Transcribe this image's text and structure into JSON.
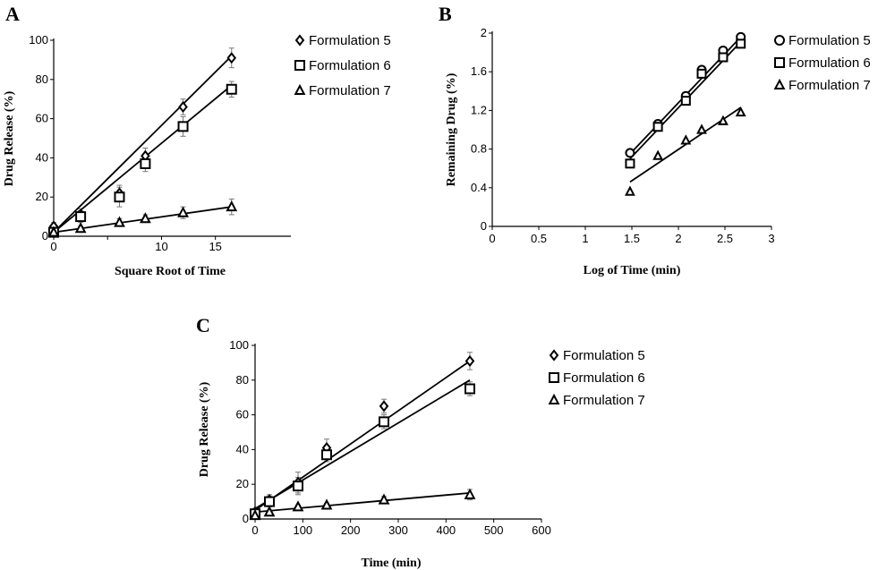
{
  "chart_data": [
    {
      "id": "A",
      "type": "scatter",
      "panel_label": "A",
      "xlabel": "Square Root of Time",
      "ylabel": "Drug Release (%)",
      "xlim": [
        0,
        22
      ],
      "ylim": [
        0,
        100
      ],
      "x_ticks": [
        0,
        5,
        10,
        15
      ],
      "x_tick_labels": [
        "0",
        "",
        "10",
        "15"
      ],
      "y_ticks": [
        0,
        20,
        40,
        60,
        80,
        100
      ],
      "grid": false,
      "legend_position": "right",
      "series": [
        {
          "name": "Formulation 5",
          "marker": "diamond",
          "x": [
            0,
            2.5,
            6.1,
            8.5,
            12.0,
            16.5
          ],
          "y": [
            5,
            11,
            22,
            41,
            66,
            91
          ],
          "err": [
            2,
            3,
            4,
            4,
            4,
            5
          ],
          "fit": [
            [
              0,
              2
            ],
            [
              16.5,
              92
            ]
          ]
        },
        {
          "name": "Formulation 6",
          "marker": "square",
          "x": [
            0,
            2.5,
            6.1,
            8.5,
            12.0,
            16.5
          ],
          "y": [
            2,
            10,
            20,
            37,
            56,
            75
          ],
          "err": [
            1,
            3,
            5,
            4,
            5,
            4
          ],
          "fit": [
            [
              0,
              2
            ],
            [
              16.5,
              77
            ]
          ]
        },
        {
          "name": "Formulation 7",
          "marker": "triangle",
          "x": [
            0,
            2.5,
            6.1,
            8.5,
            12.0,
            16.5
          ],
          "y": [
            2,
            4,
            7,
            9,
            12,
            15
          ],
          "err": [
            1,
            1,
            2,
            2,
            3,
            4
          ],
          "fit": [
            [
              0,
              2
            ],
            [
              16.5,
              15
            ]
          ]
        }
      ]
    },
    {
      "id": "B",
      "type": "scatter",
      "panel_label": "B",
      "xlabel": "Log of Time (min)",
      "ylabel": "Remaining Drug (%)",
      "xlim": [
        0,
        3
      ],
      "ylim": [
        0,
        2
      ],
      "x_ticks": [
        0,
        0.5,
        1,
        1.5,
        2,
        2.5,
        3
      ],
      "x_tick_labels": [
        "0",
        "0.5",
        "1",
        "1.5",
        "2",
        "2.5",
        "3"
      ],
      "y_ticks": [
        0,
        0.4,
        0.8,
        1.2,
        1.6,
        2
      ],
      "y_tick_labels": [
        "0",
        "0.4",
        "0.8",
        "1.2",
        "1.6",
        "2"
      ],
      "grid": false,
      "legend_position": "right",
      "series": [
        {
          "name": "Formulation 5",
          "marker": "circle",
          "x": [
            1.48,
            1.78,
            2.08,
            2.25,
            2.48,
            2.67
          ],
          "y": [
            0.76,
            1.06,
            1.35,
            1.62,
            1.82,
            1.96
          ],
          "fit": [
            [
              1.48,
              0.75
            ],
            [
              2.67,
              1.96
            ]
          ]
        },
        {
          "name": "Formulation 6",
          "marker": "square",
          "x": [
            1.48,
            1.78,
            2.08,
            2.25,
            2.48,
            2.67
          ],
          "y": [
            0.65,
            1.03,
            1.3,
            1.58,
            1.75,
            1.89
          ],
          "fit": [
            [
              1.48,
              0.7
            ],
            [
              2.67,
              1.91
            ]
          ]
        },
        {
          "name": "Formulation 7",
          "marker": "triangle",
          "x": [
            1.48,
            1.78,
            2.08,
            2.25,
            2.48,
            2.67
          ],
          "y": [
            0.36,
            0.73,
            0.89,
            1.0,
            1.09,
            1.18
          ],
          "fit": [
            [
              1.48,
              0.46
            ],
            [
              2.67,
              1.23
            ]
          ]
        }
      ]
    },
    {
      "id": "C",
      "type": "scatter",
      "panel_label": "C",
      "xlabel": "Time (min)",
      "ylabel": "Drug Release (%)",
      "xlim": [
        0,
        600
      ],
      "ylim": [
        0,
        100
      ],
      "x_ticks": [
        0,
        100,
        200,
        300,
        400,
        500,
        600
      ],
      "y_ticks": [
        0,
        20,
        40,
        60,
        80,
        100
      ],
      "grid": false,
      "legend_position": "right",
      "series": [
        {
          "name": "Formulation 5",
          "marker": "diamond",
          "x": [
            0,
            30,
            90,
            150,
            270,
            450
          ],
          "y": [
            4,
            11,
            21,
            41,
            65,
            91
          ],
          "err": [
            2,
            3,
            6,
            5,
            4,
            5
          ],
          "fit": [
            [
              0,
              5
            ],
            [
              450,
              91
            ]
          ]
        },
        {
          "name": "Formulation 6",
          "marker": "square",
          "x": [
            0,
            30,
            90,
            150,
            270,
            450
          ],
          "y": [
            3,
            10,
            19,
            37,
            56,
            75
          ],
          "err": [
            1,
            3,
            5,
            4,
            4,
            4
          ],
          "fit": [
            [
              0,
              6
            ],
            [
              450,
              80
            ]
          ]
        },
        {
          "name": "Formulation 7",
          "marker": "triangle",
          "x": [
            0,
            30,
            90,
            150,
            270,
            450
          ],
          "y": [
            2,
            4,
            7,
            8,
            11,
            14
          ],
          "err": [
            1,
            1,
            1,
            1,
            2,
            3
          ],
          "fit": [
            [
              0,
              4
            ],
            [
              450,
              15
            ]
          ]
        }
      ]
    }
  ]
}
